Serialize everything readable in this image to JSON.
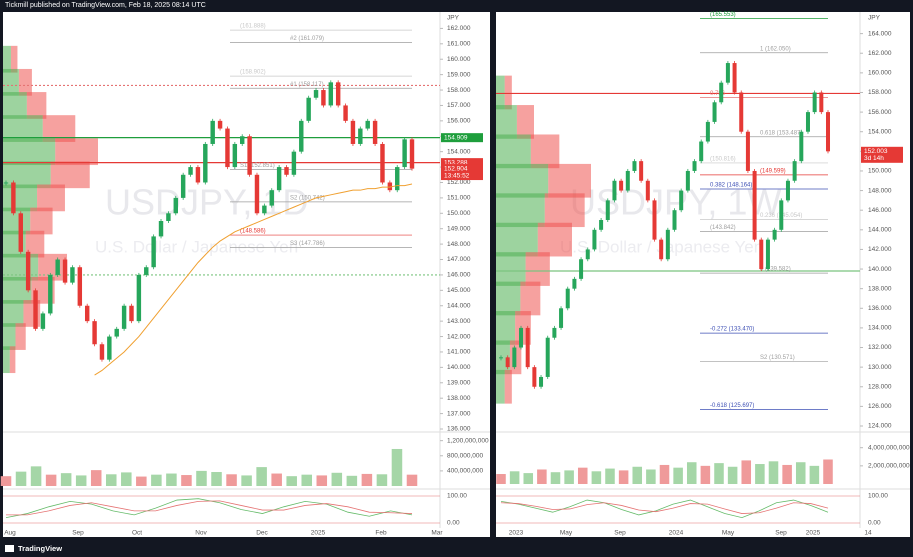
{
  "header": "Tickmill published on TradingView.com, Feb 18, 2025 08:14 UTC",
  "footer": "TradingView",
  "chart_data": [
    {
      "type": "candlestick",
      "title": "USDJPY, 1D",
      "subtitle": "U.S. Dollar / Japanese Yen",
      "currency": "JPY",
      "up_color": "#26a65b",
      "down_color": "#e53935",
      "ma_color": "#f0a030",
      "closes": [
        152,
        150,
        147.5,
        145,
        142.5,
        143.5,
        146,
        147,
        145.5,
        146.5,
        144,
        143,
        141.5,
        140.5,
        142,
        142.5,
        144,
        143,
        146,
        146.5,
        148.5,
        149.5,
        150,
        151,
        152.5,
        153,
        152,
        154.5,
        156,
        155.5,
        153,
        154.5,
        155,
        152.5,
        150,
        150.5,
        151.5,
        153,
        152.5,
        154,
        156,
        157.5,
        158,
        157,
        158.5,
        157,
        156,
        154.5,
        155.5,
        156,
        154.5,
        152,
        151.5,
        153,
        154.8,
        152.9
      ],
      "ma": [
        null,
        null,
        null,
        null,
        null,
        null,
        null,
        null,
        null,
        null,
        null,
        null,
        139.5,
        139.8,
        140.2,
        140.6,
        141,
        141.5,
        142,
        142.6,
        143.2,
        143.8,
        144.4,
        145,
        145.6,
        146.2,
        146.8,
        147.3,
        147.8,
        148.2,
        148.5,
        148.8,
        149,
        149.2,
        149.4,
        149.6,
        149.8,
        150,
        150.2,
        150.4,
        150.6,
        150.8,
        151,
        151.1,
        151.2,
        151.3,
        151.4,
        151.5,
        151.5,
        151.6,
        151.6,
        151.7,
        151.7,
        151.8,
        151.8,
        151.9
      ],
      "ylim": [
        136,
        163
      ],
      "yticks": [
        {
          "value": 136,
          "label": "136.000"
        },
        {
          "value": 137,
          "label": "137.000"
        },
        {
          "value": 138,
          "label": "138.000"
        },
        {
          "value": 139,
          "label": "139.000"
        },
        {
          "value": 140,
          "label": "140.000"
        },
        {
          "value": 141,
          "label": "141.000"
        },
        {
          "value": 142,
          "label": "142.000"
        },
        {
          "value": 143,
          "label": "143.000"
        },
        {
          "value": 144,
          "label": "144.000"
        },
        {
          "value": 145,
          "label": "145.000"
        },
        {
          "value": 146,
          "label": "146.000"
        },
        {
          "value": 147,
          "label": "147.000"
        },
        {
          "value": 148,
          "label": "148.000"
        },
        {
          "value": 149,
          "label": "149.000"
        },
        {
          "value": 150,
          "label": "150.000"
        },
        {
          "value": 151,
          "label": "151.000"
        },
        {
          "value": 152,
          "label": "152.000"
        },
        {
          "value": 153,
          "label": "153.000"
        },
        {
          "value": 154,
          "label": "154.000"
        },
        {
          "value": 155,
          "label": "155.000"
        },
        {
          "value": 156,
          "label": "156.000"
        },
        {
          "value": 157,
          "label": "157.000"
        },
        {
          "value": 158,
          "label": "158.000"
        },
        {
          "value": 159,
          "label": "159.000"
        },
        {
          "value": 160,
          "label": "160.000"
        },
        {
          "value": 161,
          "label": "161.000"
        },
        {
          "value": 162,
          "label": "162.000"
        }
      ],
      "levels": [
        {
          "label": "(161.888)",
          "value": 161.888,
          "color": "#c8c8c8"
        },
        {
          "label": "#2 (161.079)",
          "value": 161.079,
          "color": "#9e9e9e"
        },
        {
          "label": "(158.902)",
          "value": 158.902,
          "color": "#c8c8c8"
        },
        {
          "label": "#1 (158.117)",
          "value": 158.117,
          "color": "#9e9e9e"
        },
        {
          "label": "S1 (152.851)",
          "value": 152.851,
          "color": "#9e9e9e"
        },
        {
          "label": "S2 (150.742)",
          "value": 150.742,
          "color": "#9e9e9e"
        },
        {
          "label": "(148.586)",
          "value": 148.586,
          "color": "#e53935"
        },
        {
          "label": "S3 (147.786)",
          "value": 147.786,
          "color": "#9e9e9e"
        }
      ],
      "hlines": [
        {
          "value": 154.909,
          "color": "#1e9e3c"
        },
        {
          "value": 153.288,
          "color": "#e53935"
        },
        {
          "value": 158.3,
          "color": "#e57373"
        },
        {
          "value": 146.0,
          "color": "#7bc47f"
        }
      ],
      "tags": [
        {
          "label": "154.909",
          "value": 154.909,
          "color": "#1e9e3c"
        },
        {
          "label": "153.288",
          "value": 153.288,
          "color": "#e53935"
        },
        {
          "label": "152.904",
          "sub": "13:45:52",
          "value": 152.904,
          "color": "#e53935"
        }
      ],
      "profile_levels": [
        160,
        158.5,
        157,
        155.5,
        154,
        152.5,
        151,
        149.5,
        148,
        146.5,
        145,
        143.5,
        142,
        140.5
      ],
      "profile_values": [
        14,
        28,
        42,
        70,
        92,
        84,
        60,
        48,
        40,
        62,
        50,
        36,
        22,
        12
      ],
      "volume": [
        260000000,
        380000000,
        520000000,
        300000000,
        340000000,
        280000000,
        420000000,
        310000000,
        360000000,
        250000000,
        300000000,
        330000000,
        290000000,
        400000000,
        370000000,
        310000000,
        280000000,
        500000000,
        330000000,
        260000000,
        300000000,
        280000000,
        350000000,
        270000000,
        320000000,
        310000000,
        980000000,
        300000000
      ],
      "volume_ylim": [
        0,
        1350000000
      ],
      "volume_ticks": [
        {
          "value": 400000000,
          "label": "400,000,000"
        },
        {
          "value": 800000000,
          "label": "800,000,000"
        },
        {
          "value": 1200000000,
          "label": "1,200,000,000"
        }
      ],
      "osc_k": [
        20,
        35,
        60,
        80,
        70,
        45,
        30,
        55,
        85,
        90,
        75,
        50,
        35,
        60,
        80,
        70,
        40,
        25,
        45,
        30
      ],
      "osc_d": [
        30,
        30,
        45,
        65,
        75,
        60,
        45,
        45,
        65,
        80,
        82,
        65,
        48,
        48,
        65,
        72,
        60,
        40,
        38,
        35
      ],
      "osc_ylim": [
        0,
        100
      ],
      "osc_ticks": [
        {
          "value": 0,
          "label": "0.00"
        },
        {
          "value": 100,
          "label": "100.00"
        }
      ],
      "xlabels": [
        "Aug",
        "Sep",
        "Oct",
        "Nov",
        "Dec",
        "2025",
        "Feb",
        "Mar"
      ]
    },
    {
      "type": "candlestick",
      "title": "USDJPY, 1W",
      "subtitle": "U.S. Dollar / Japanese Yen",
      "currency": "JPY",
      "up_color": "#26a65b",
      "down_color": "#e53935",
      "closes": [
        131,
        130,
        132,
        134,
        130,
        128,
        129,
        133,
        134,
        136,
        138,
        139,
        141,
        142,
        144,
        145,
        147,
        149,
        148,
        150,
        151,
        149,
        147,
        143,
        141,
        144,
        146,
        148,
        150,
        151,
        153,
        155,
        157,
        159,
        161,
        158,
        154,
        150,
        143,
        140,
        143,
        144,
        147,
        149,
        151,
        154,
        156,
        158,
        156,
        152
      ],
      "ylim": [
        124,
        166
      ],
      "yticks": [
        {
          "value": 124,
          "label": "124.000"
        },
        {
          "value": 126,
          "label": "126.000"
        },
        {
          "value": 128,
          "label": "128.000"
        },
        {
          "value": 130,
          "label": "130.000"
        },
        {
          "value": 132,
          "label": "132.000"
        },
        {
          "value": 134,
          "label": "134.000"
        },
        {
          "value": 136,
          "label": "136.000"
        },
        {
          "value": 138,
          "label": "138.000"
        },
        {
          "value": 140,
          "label": "140.000"
        },
        {
          "value": 142,
          "label": "142.000"
        },
        {
          "value": 144,
          "label": "144.000"
        },
        {
          "value": 146,
          "label": "146.000"
        },
        {
          "value": 148,
          "label": "148.000"
        },
        {
          "value": 150,
          "label": "150.000"
        },
        {
          "value": 152,
          "label": "152.000"
        },
        {
          "value": 154,
          "label": "154.000"
        },
        {
          "value": 156,
          "label": "156.000"
        },
        {
          "value": 158,
          "label": "158.000"
        },
        {
          "value": 160,
          "label": "160.000"
        },
        {
          "value": 162,
          "label": "162.000"
        },
        {
          "value": 164,
          "label": "164.000"
        }
      ],
      "levels": [
        {
          "label": "(165.553)",
          "value": 165.553,
          "color": "#1e9e3c"
        },
        {
          "label": "1 (162.050)",
          "value": 162.05,
          "color": "#9e9e9e"
        },
        {
          "label": "0.786",
          "value": 157.5,
          "color": "#e57373"
        },
        {
          "label": "0.618 (153.487)",
          "value": 153.487,
          "color": "#9e9e9e"
        },
        {
          "label": "(150.816)",
          "value": 150.816,
          "color": "#c8c8c8"
        },
        {
          "label": "(149.599)",
          "value": 149.599,
          "color": "#e53935"
        },
        {
          "label": "0.382 (148.164)",
          "value": 148.164,
          "color": "#3f51b5"
        },
        {
          "label": "0.236 (145.054)",
          "value": 145.054,
          "color": "#c8c8c8"
        },
        {
          "label": "(143.842)",
          "value": 143.842,
          "color": "#9e9e9e"
        },
        {
          "label": "0 (139.582)",
          "value": 139.582,
          "color": "#9e9e9e"
        },
        {
          "label": "-0.272 (133.470)",
          "value": 133.47,
          "color": "#3f51b5"
        },
        {
          "label": "S2 (130.571)",
          "value": 130.571,
          "color": "#9e9e9e"
        },
        {
          "label": "-0.618 (125.697)",
          "value": 125.697,
          "color": "#3f51b5"
        }
      ],
      "hlines": [
        {
          "value": 157.9,
          "color": "#e53935"
        },
        {
          "value": 139.8,
          "color": "#7bc47f"
        }
      ],
      "tags": [
        {
          "label": "152.003",
          "sub": "3d 14h",
          "value": 152.003,
          "color": "#e53935"
        }
      ],
      "profile_levels": [
        158,
        155,
        152,
        149,
        146,
        143,
        140,
        137,
        134,
        131,
        128
      ],
      "profile_values": [
        10,
        24,
        40,
        60,
        56,
        48,
        34,
        28,
        22,
        16,
        10
      ],
      "volume": [
        1100000000,
        1400000000,
        1200000000,
        1600000000,
        1300000000,
        1500000000,
        1800000000,
        1400000000,
        1700000000,
        1500000000,
        1900000000,
        1600000000,
        2100000000,
        1800000000,
        2400000000,
        2000000000,
        2300000000,
        1900000000,
        2600000000,
        2200000000,
        2500000000,
        2100000000,
        2400000000,
        2000000000,
        2700000000
      ],
      "volume_ylim": [
        0,
        5400000000
      ],
      "volume_ticks": [
        {
          "value": 2000000000,
          "label": "2,000,000,000"
        },
        {
          "value": 4000000000,
          "label": "4,000,000,000"
        }
      ],
      "osc_k": [
        80,
        70,
        55,
        40,
        60,
        85,
        75,
        50,
        30,
        45,
        70,
        85,
        60,
        35,
        20,
        45,
        75,
        85,
        65,
        40
      ],
      "osc_d": [
        75,
        72,
        62,
        50,
        52,
        68,
        75,
        65,
        48,
        42,
        55,
        72,
        70,
        52,
        35,
        38,
        55,
        75,
        72,
        55
      ],
      "osc_ylim": [
        0,
        100
      ],
      "osc_ticks": [
        {
          "value": 0,
          "label": "0.00"
        },
        {
          "value": 100,
          "label": "100.00"
        }
      ],
      "xlabels": [
        "2023",
        "May",
        "Sep",
        "2024",
        "May",
        "Sep",
        "2025",
        "14"
      ]
    }
  ]
}
